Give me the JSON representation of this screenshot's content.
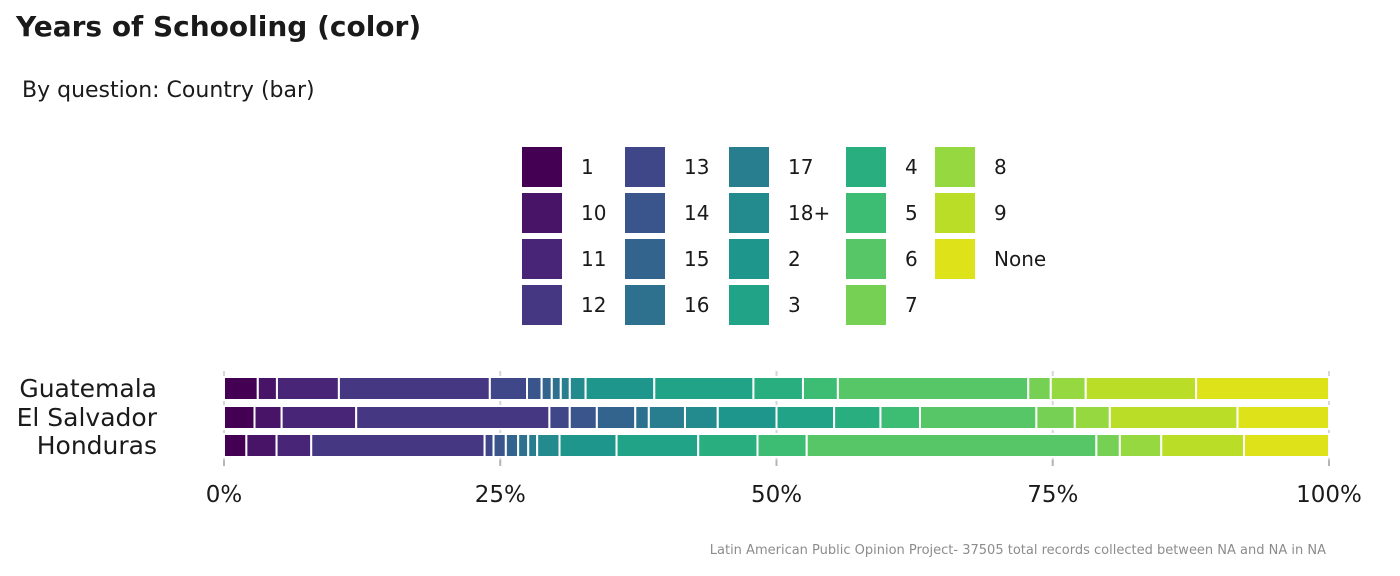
{
  "chart_data": {
    "type": "bar",
    "orientation": "horizontal",
    "stacked": "percent",
    "title": "Years of Schooling (color)",
    "subtitle": "By question: Country (bar)",
    "caption": "Latin American Public Opinion Project- 37505 total records collected between NA and NA in  NA",
    "categories": [
      "Guatemala",
      "El Salvador",
      "Honduras"
    ],
    "x_ticks": [
      "0%",
      "25%",
      "50%",
      "75%",
      "100%"
    ],
    "xlim": [
      0,
      100
    ],
    "legend_position": "top",
    "series": [
      {
        "name": "1",
        "color": "#440154",
        "values": [
          3.0,
          2.7,
          2.0
        ]
      },
      {
        "name": "10",
        "color": "#481467",
        "values": [
          1.7,
          2.4,
          2.7
        ]
      },
      {
        "name": "11",
        "color": "#482576",
        "values": [
          5.5,
          6.6,
          3.1
        ]
      },
      {
        "name": "12",
        "color": "#453781",
        "values": [
          13.4,
          17.1,
          15.5
        ]
      },
      {
        "name": "13",
        "color": "#3f4788",
        "values": [
          3.3,
          1.8,
          0.8
        ]
      },
      {
        "name": "14",
        "color": "#39558c",
        "values": [
          1.3,
          2.4,
          1.1
        ]
      },
      {
        "name": "15",
        "color": "#32648e",
        "values": [
          0.9,
          3.4,
          1.1
        ]
      },
      {
        "name": "16",
        "color": "#2d718e",
        "values": [
          0.8,
          1.2,
          0.9
        ]
      },
      {
        "name": "17",
        "color": "#287d8e",
        "values": [
          0.8,
          3.2,
          0.8
        ]
      },
      {
        "name": "18+",
        "color": "#238a8d",
        "values": [
          1.4,
          2.9,
          2.0
        ]
      },
      {
        "name": "2",
        "color": "#1f968b",
        "values": [
          6.1,
          5.2,
          5.1
        ]
      },
      {
        "name": "3",
        "color": "#20a386",
        "values": [
          8.8,
          5.1,
          7.3
        ]
      },
      {
        "name": "4",
        "color": "#29af7f",
        "values": [
          4.4,
          4.1,
          5.3
        ]
      },
      {
        "name": "5",
        "color": "#3dbc74",
        "values": [
          3.1,
          3.5,
          4.4
        ]
      },
      {
        "name": "6",
        "color": "#56c667",
        "values": [
          16.9,
          10.3,
          25.9
        ]
      },
      {
        "name": "7",
        "color": "#75d054",
        "values": [
          2.0,
          3.4,
          2.1
        ]
      },
      {
        "name": "8",
        "color": "#95d840",
        "values": [
          3.1,
          3.1,
          3.7
        ]
      },
      {
        "name": "9",
        "color": "#bade28",
        "values": [
          9.8,
          11.3,
          7.4
        ]
      },
      {
        "name": "None",
        "color": "#dde318",
        "values": [
          11.8,
          8.1,
          7.6
        ]
      }
    ],
    "extra_legend_swatch": "#fde725"
  }
}
